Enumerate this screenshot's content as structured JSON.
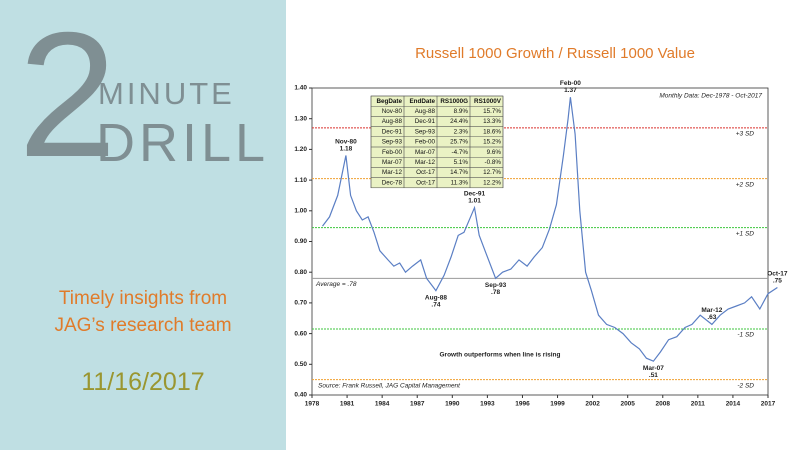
{
  "panel": {
    "number": "2",
    "word1": "MINUTE",
    "word2": "DRILL",
    "tagline1": "Timely insights from",
    "tagline2": "JAG’s research team",
    "date": "11/16/2017"
  },
  "chart_data": {
    "type": "line",
    "title": "Russell 1000 Growth / Russell 1000 Value",
    "note": "Monthly Data: Dec-1978 - Oct-2017",
    "source": "Source: Frank Russell, JAG Capital Management",
    "caption": "Growth outperforms when line is rising",
    "color": "#5b7fc4",
    "x": [
      1978.9,
      1979.5,
      1980.2,
      1980.9,
      1981.3,
      1981.8,
      1982.3,
      1982.8,
      1983.3,
      1983.8,
      1984.5,
      1985.0,
      1985.5,
      1986.0,
      1986.6,
      1987.3,
      1987.8,
      1988.6,
      1989.3,
      1989.9,
      1990.5,
      1991.0,
      1991.9,
      1992.3,
      1992.9,
      1993.7,
      1994.3,
      1995.0,
      1995.7,
      1996.4,
      1997.0,
      1997.7,
      1998.3,
      1998.9,
      1999.5,
      1999.9,
      2000.1,
      2000.5,
      2000.9,
      2001.4,
      2001.9,
      2002.5,
      2003.2,
      2003.9,
      2004.6,
      2005.3,
      2006.0,
      2006.6,
      2007.2,
      2007.8,
      2008.5,
      2009.2,
      2009.9,
      2010.5,
      2011.2,
      2012.2,
      2012.9,
      2013.6,
      2014.3,
      2015.0,
      2015.6,
      2016.3,
      2017.0,
      2017.8
    ],
    "values": [
      0.95,
      0.98,
      1.05,
      1.18,
      1.05,
      1.0,
      0.97,
      0.98,
      0.93,
      0.87,
      0.84,
      0.82,
      0.83,
      0.8,
      0.82,
      0.84,
      0.78,
      0.74,
      0.79,
      0.85,
      0.92,
      0.93,
      1.01,
      0.92,
      0.86,
      0.78,
      0.8,
      0.81,
      0.84,
      0.82,
      0.85,
      0.88,
      0.94,
      1.02,
      1.18,
      1.3,
      1.37,
      1.25,
      1.0,
      0.8,
      0.74,
      0.66,
      0.63,
      0.62,
      0.6,
      0.57,
      0.55,
      0.52,
      0.51,
      0.54,
      0.58,
      0.59,
      0.62,
      0.63,
      0.66,
      0.63,
      0.66,
      0.68,
      0.69,
      0.7,
      0.72,
      0.68,
      0.73,
      0.75
    ],
    "xlim": [
      1978,
      2017
    ],
    "xticks": [
      1978,
      1981,
      1984,
      1987,
      1990,
      1993,
      1996,
      1999,
      2002,
      2005,
      2008,
      2011,
      2014,
      2017
    ],
    "ylim": [
      0.4,
      1.4
    ],
    "yticks": [
      {
        "value": 0.4,
        "label": "0.40"
      },
      {
        "value": 0.5,
        "label": "0.50"
      },
      {
        "value": 0.6,
        "label": "0.60"
      },
      {
        "value": 0.7,
        "label": "0.70"
      },
      {
        "value": 0.8,
        "label": "0.80"
      },
      {
        "value": 0.9,
        "label": "0.90"
      },
      {
        "value": 1.0,
        "label": "1.00"
      },
      {
        "value": 1.1,
        "label": "1.10"
      },
      {
        "value": 1.2,
        "label": "1.20"
      },
      {
        "value": 1.3,
        "label": "1.30"
      },
      {
        "value": 1.4,
        "label": "1.40"
      }
    ],
    "ref_lines": [
      {
        "value": 1.27,
        "label": "+3 SD",
        "color": "#d9302c"
      },
      {
        "value": 1.105,
        "label": "+2 SD",
        "color": "#f0a030"
      },
      {
        "value": 0.945,
        "label": "+1 SD",
        "color": "#3cc63c"
      },
      {
        "value": 0.78,
        "label": "Average = .78",
        "color": "#9a9a9a"
      },
      {
        "value": 0.615,
        "label": "-1 SD",
        "color": "#3cc63c"
      },
      {
        "value": 0.45,
        "label": "-2 SD",
        "color": "#f0a030"
      }
    ],
    "annotations": [
      {
        "text": "Nov-80",
        "label": "1.18",
        "x": 1980.9,
        "y": 1.18
      },
      {
        "text": "Aug-88",
        "label": ".74",
        "x": 1988.6,
        "y": 0.74
      },
      {
        "text": "Dec-91",
        "label": "1.01",
        "x": 1991.9,
        "y": 1.01
      },
      {
        "text": "Sep-93",
        "label": ".78",
        "x": 1993.7,
        "y": 0.78
      },
      {
        "text": "Feb-00",
        "label": "1.37",
        "x": 2000.1,
        "y": 1.37
      },
      {
        "text": "Mar-07",
        "label": ".51",
        "x": 2007.2,
        "y": 0.51
      },
      {
        "text": "Mar-12",
        "label": ".63",
        "x": 2012.2,
        "y": 0.63
      },
      {
        "text": "Oct-17",
        "label": ".75",
        "x": 2017.8,
        "y": 0.75
      }
    ],
    "table": {
      "header": [
        "BegDate",
        "EndDate",
        "RS1000G",
        "RS1000V"
      ],
      "rows": [
        [
          "Nov-80",
          "Aug-88",
          "8.9%",
          "15.7%"
        ],
        [
          "Aug-88",
          "Dec-91",
          "24.4%",
          "13.3%"
        ],
        [
          "Dec-91",
          "Sep-93",
          "2.3%",
          "18.6%"
        ],
        [
          "Sep-93",
          "Feb-00",
          "25.7%",
          "15.2%"
        ],
        [
          "Feb-00",
          "Mar-07",
          "-4.7%",
          "9.6%"
        ],
        [
          "Mar-07",
          "Mar-12",
          "5.1%",
          "-0.8%"
        ],
        [
          "Mar-12",
          "Oct-17",
          "14.7%",
          "12.7%"
        ],
        [
          "Dec-78",
          "Oct-17",
          "11.3%",
          "12.2%"
        ]
      ]
    }
  }
}
